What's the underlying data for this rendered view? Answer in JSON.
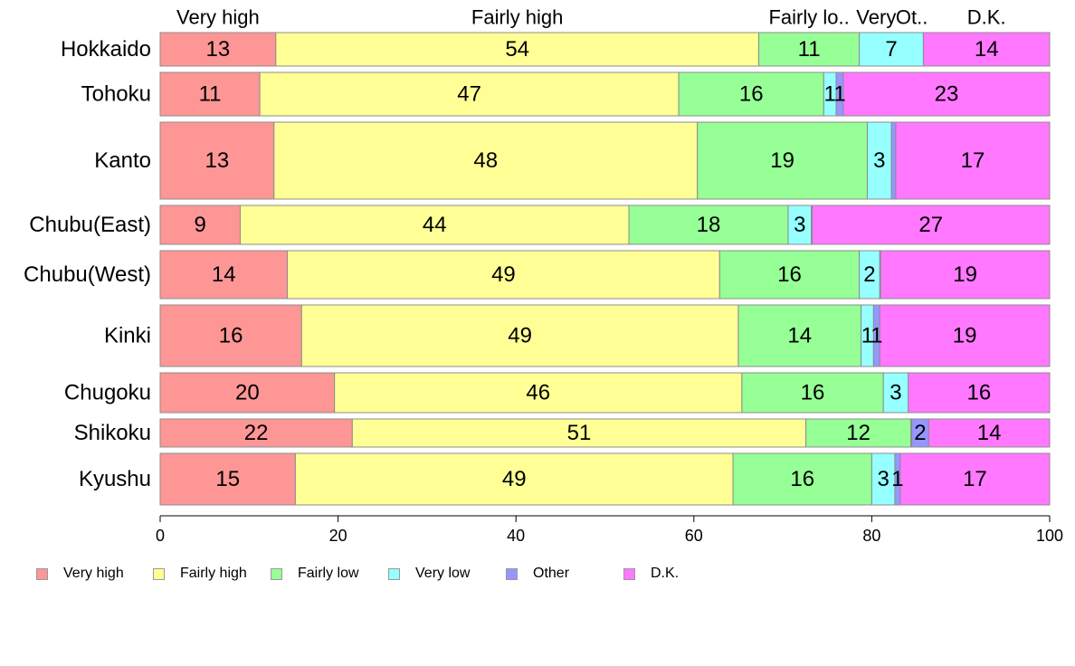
{
  "colors": {
    "very_high": "#ff9696",
    "fairly_high": "#ffff96",
    "fairly_low": "#96ff96",
    "very_low": "#96ffff",
    "other": "#9696ff",
    "dk": "#ff78ff",
    "bar_stroke": "#8c8c8c"
  },
  "legend": [
    {
      "label": "Very high",
      "color": "#ff9696"
    },
    {
      "label": "Fairly high",
      "color": "#ffff96"
    },
    {
      "label": "Fairly low",
      "color": "#96ff96"
    },
    {
      "label": "Very low",
      "color": "#96ffff"
    },
    {
      "label": "Other",
      "color": "#9696ff"
    },
    {
      "label": "D.K.",
      "color": "#ff78ff"
    }
  ],
  "chart_data": {
    "type": "bar",
    "orientation": "horizontal",
    "stacked": true,
    "variable_bar_width": true,
    "categories": [
      "Hokkaido",
      "Tohoku",
      "Kanto",
      "Chubu(East)",
      "Chubu(West)",
      "Kinki",
      "Chugoku",
      "Shikoku",
      "Kyushu"
    ],
    "top_labels": [
      "Very high",
      "Fairly high",
      "Fairly lo..",
      "Very",
      "Ot..",
      "D.K."
    ],
    "series": [
      {
        "name": "Very high",
        "values": [
          13,
          11.2,
          12.8,
          9,
          14.3,
          15.9,
          19.6,
          21.6,
          15.2
        ],
        "labels": [
          "13",
          "11",
          "13",
          "9",
          "14",
          "16",
          "20",
          "22",
          "15"
        ]
      },
      {
        "name": "Fairly high",
        "values": [
          54.3,
          47.1,
          47.6,
          43.7,
          48.6,
          49.1,
          45.8,
          51.0,
          49.2
        ],
        "labels": [
          "54",
          "47",
          "48",
          "44",
          "49",
          "49",
          "46",
          "51",
          "49"
        ]
      },
      {
        "name": "Fairly low",
        "values": [
          11.3,
          16.3,
          19.1,
          17.9,
          15.7,
          13.8,
          15.9,
          11.8,
          15.6
        ],
        "labels": [
          "11",
          "16",
          "19",
          "18",
          "16",
          "14",
          "16",
          "12",
          "16"
        ]
      },
      {
        "name": "Very low",
        "values": [
          7.2,
          1.4,
          2.7,
          2.6,
          2.3,
          1.4,
          2.8,
          0.1,
          2.6
        ],
        "labels": [
          "7",
          "1",
          "3",
          "3",
          "2",
          "1",
          "3",
          "",
          "3"
        ]
      },
      {
        "name": "Other",
        "values": [
          0,
          0.8,
          0.5,
          0.1,
          0.1,
          0.7,
          0,
          1.9,
          0.6
        ],
        "labels": [
          "",
          "1",
          "",
          "",
          "",
          "1",
          "",
          "2",
          "1"
        ]
      },
      {
        "name": "D.K.",
        "values": [
          14.2,
          23.2,
          17.3,
          26.7,
          19.0,
          19.1,
          15.9,
          13.6,
          16.8
        ],
        "labels": [
          "14",
          "23",
          "17",
          "27",
          "19",
          "19",
          "16",
          "14",
          "17"
        ]
      }
    ],
    "bar_weights": [
      37,
      48,
      85,
      43,
      53,
      68,
      44,
      31,
      57
    ],
    "xlim": [
      0,
      100
    ],
    "x_ticks": [
      0,
      20,
      40,
      60,
      80,
      100
    ],
    "legend_position": "bottom-left",
    "grid": false
  }
}
